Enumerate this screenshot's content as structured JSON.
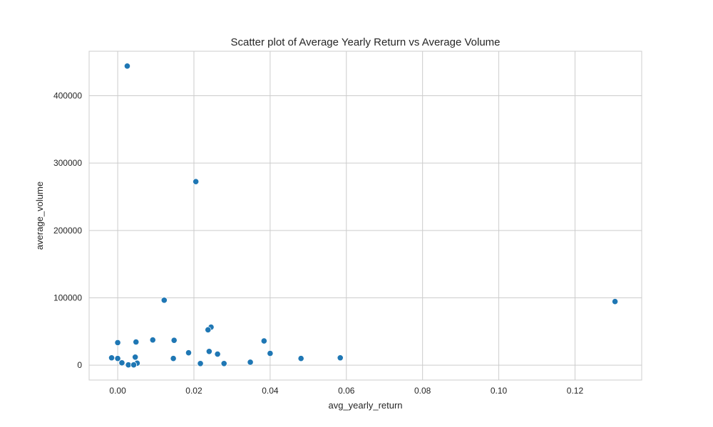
{
  "chart_data": {
    "type": "scatter",
    "title": "Scatter plot of Average Yearly Return vs Average Volume",
    "xlabel": "avg_yearly_return",
    "ylabel": "average_volume",
    "xlim": [
      -0.0075,
      0.1375
    ],
    "ylim": [
      -22000,
      466000
    ],
    "xticks": [
      0.0,
      0.02,
      0.04,
      0.06,
      0.08,
      0.1,
      0.12
    ],
    "xtick_labels": [
      "0.00",
      "0.02",
      "0.04",
      "0.06",
      "0.08",
      "0.10",
      "0.12"
    ],
    "yticks": [
      0,
      100000,
      200000,
      300000,
      400000
    ],
    "ytick_labels": [
      "0",
      "100000",
      "200000",
      "300000",
      "400000"
    ],
    "grid": true,
    "legend": "none",
    "point_color": "#1f77b4",
    "point_edge_color": "#ffffff",
    "background_color": "#ffffff",
    "grid_color": "#cccccc",
    "points": [
      {
        "x": 0.0025,
        "y": 444000
      },
      {
        "x": 0.0205,
        "y": 272500
      },
      {
        "x": 0.0122,
        "y": 96500
      },
      {
        "x": 0.1305,
        "y": 94500
      },
      {
        "x": 0.0245,
        "y": 56500
      },
      {
        "x": 0.0237,
        "y": 52500
      },
      {
        "x": 0.0092,
        "y": 37500
      },
      {
        "x": 0.0148,
        "y": 37000
      },
      {
        "x": 0.0384,
        "y": 36000
      },
      {
        "x": 0.0048,
        "y": 34500
      },
      {
        "x": 0.0,
        "y": 33500
      },
      {
        "x": 0.024,
        "y": 20500
      },
      {
        "x": 0.0186,
        "y": 18500
      },
      {
        "x": 0.04,
        "y": 17500
      },
      {
        "x": 0.0262,
        "y": 16500
      },
      {
        "x": 0.0046,
        "y": 12000
      },
      {
        "x": -0.0016,
        "y": 11000
      },
      {
        "x": 0.0584,
        "y": 11000
      },
      {
        "x": 0.0,
        "y": 10000
      },
      {
        "x": 0.0146,
        "y": 10000
      },
      {
        "x": 0.0481,
        "y": 10000
      },
      {
        "x": 0.0011,
        "y": 3500
      },
      {
        "x": 0.0051,
        "y": 3000
      },
      {
        "x": 0.0348,
        "y": 4500
      },
      {
        "x": 0.0217,
        "y": 2500
      },
      {
        "x": 0.0279,
        "y": 2500
      },
      {
        "x": 0.0028,
        "y": 500
      },
      {
        "x": 0.0042,
        "y": 500
      }
    ]
  }
}
